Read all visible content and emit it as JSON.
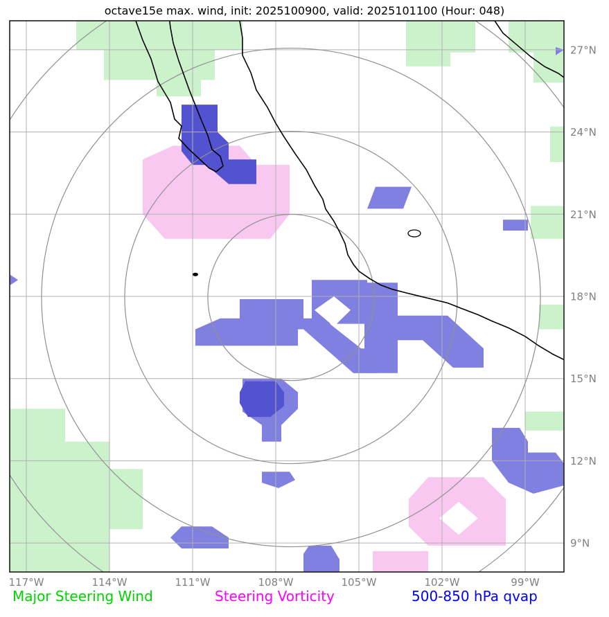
{
  "title": "octave15e max. wind, init: 2025100900, valid: 2025101100 (Hour: 048)",
  "legend": [
    {
      "id": "steering-wind",
      "label": "Major Steering Wind",
      "color": "#00d400"
    },
    {
      "id": "steering-vorticity",
      "label": "Steering Vorticity",
      "color": "#ff00ff"
    },
    {
      "id": "qvap",
      "label": "500-850 hPa qvap",
      "color": "#0000ff"
    }
  ],
  "chart_data": {
    "type": "map",
    "projection": "equirectangular",
    "lon_range": [
      -117.6,
      -97.6
    ],
    "lat_range": [
      7.94,
      28.06
    ],
    "lon_ticks": [
      {
        "value": -117,
        "label": "117°W"
      },
      {
        "value": -114,
        "label": "114°W"
      },
      {
        "value": -111,
        "label": "111°W"
      },
      {
        "value": -108,
        "label": "108°W"
      },
      {
        "value": -105,
        "label": "105°W"
      },
      {
        "value": -102,
        "label": "102°W"
      },
      {
        "value": -99,
        "label": "99°W"
      }
    ],
    "lat_ticks": [
      {
        "value": 27,
        "label": "27°N"
      },
      {
        "value": 24,
        "label": "24°N"
      },
      {
        "value": 21,
        "label": "21°N"
      },
      {
        "value": 18,
        "label": "18°N"
      },
      {
        "value": 15,
        "label": "15°N"
      },
      {
        "value": 12,
        "label": "12°N"
      },
      {
        "value": 9,
        "label": "9°N"
      }
    ],
    "range_rings": {
      "center_lon": -107.45,
      "center_lat": 17.96,
      "radii_deg": [
        3,
        6,
        9,
        12
      ]
    },
    "colors": {
      "wind_fill": "#ccf2cc",
      "vorticity_fill": "#f8c8f0",
      "qvap_fill": "#8080e0",
      "qvap_fill_dark": "#5353d1",
      "grid": "#b0b0b0",
      "ring": "#909090",
      "coast": "#000000",
      "tick_text": "#808080"
    },
    "fills": {
      "steering_wind": [
        [
          [
            -115.2,
            28.06
          ],
          [
            -109.2,
            28.06
          ],
          [
            -109.2,
            27.0
          ],
          [
            -110.2,
            27.0
          ],
          [
            -110.2,
            25.9
          ],
          [
            -110.7,
            25.9
          ],
          [
            -110.7,
            25.3
          ],
          [
            -112.3,
            25.3
          ],
          [
            -112.3,
            25.9
          ],
          [
            -114.2,
            25.9
          ],
          [
            -114.2,
            27.0
          ],
          [
            -115.2,
            27.0
          ]
        ],
        [
          [
            -103.3,
            28.06
          ],
          [
            -100.8,
            28.06
          ],
          [
            -100.8,
            26.9
          ],
          [
            -101.7,
            26.9
          ],
          [
            -101.7,
            26.4
          ],
          [
            -103.3,
            26.4
          ]
        ],
        [
          [
            -99.6,
            28.06
          ],
          [
            -97.6,
            28.06
          ],
          [
            -97.6,
            25.8
          ],
          [
            -98.7,
            25.8
          ],
          [
            -98.7,
            26.9
          ],
          [
            -99.6,
            26.9
          ]
        ],
        [
          [
            -98.1,
            24.2
          ],
          [
            -97.6,
            24.2
          ],
          [
            -97.6,
            22.9
          ],
          [
            -98.1,
            22.9
          ]
        ],
        [
          [
            -98.8,
            21.3
          ],
          [
            -97.6,
            21.3
          ],
          [
            -97.6,
            20.1
          ],
          [
            -98.8,
            20.1
          ]
        ],
        [
          [
            -98.5,
            17.7
          ],
          [
            -97.6,
            17.7
          ],
          [
            -97.6,
            16.8
          ],
          [
            -98.5,
            16.8
          ]
        ],
        [
          [
            -99.0,
            13.8
          ],
          [
            -97.6,
            13.8
          ],
          [
            -97.6,
            13.1
          ],
          [
            -99.0,
            13.1
          ]
        ],
        [
          [
            -117.6,
            13.9
          ],
          [
            -115.6,
            13.9
          ],
          [
            -115.6,
            12.7
          ],
          [
            -114.0,
            12.7
          ],
          [
            -114.0,
            11.7
          ],
          [
            -112.8,
            11.7
          ],
          [
            -112.8,
            9.5
          ],
          [
            -114.0,
            9.5
          ],
          [
            -114.0,
            7.94
          ],
          [
            -117.6,
            7.94
          ]
        ]
      ],
      "vorticity": [
        [
          [
            -111.7,
            23.5
          ],
          [
            -109.3,
            23.5
          ],
          [
            -108.7,
            22.8
          ],
          [
            -107.5,
            22.8
          ],
          [
            -107.5,
            21.0
          ],
          [
            -108.2,
            20.1
          ],
          [
            -112.0,
            20.1
          ],
          [
            -112.8,
            21.0
          ],
          [
            -112.8,
            23.0
          ]
        ],
        [
          [
            -102.5,
            11.4
          ],
          [
            -100.5,
            11.4
          ],
          [
            -99.7,
            10.6
          ],
          [
            -99.7,
            8.9
          ],
          [
            -102.5,
            8.9
          ],
          [
            -103.2,
            9.6
          ],
          [
            -103.2,
            10.6
          ]
        ],
        [
          [
            -104.5,
            8.7
          ],
          [
            -102.5,
            8.7
          ],
          [
            -102.5,
            7.94
          ],
          [
            -104.5,
            7.94
          ]
        ]
      ],
      "vorticity_holes": [
        [
          [
            -101.4,
            10.5
          ],
          [
            -100.7,
            9.9
          ],
          [
            -101.4,
            9.3
          ],
          [
            -102.1,
            9.9
          ]
        ]
      ],
      "qvap_light": [
        [
          [
            -104.4,
            22.0
          ],
          [
            -103.1,
            22.0
          ],
          [
            -103.4,
            21.2
          ],
          [
            -104.7,
            21.2
          ]
        ],
        [
          [
            -99.8,
            20.8
          ],
          [
            -98.9,
            20.8
          ],
          [
            -98.9,
            20.4
          ],
          [
            -99.8,
            20.4
          ]
        ],
        [
          [
            -117.6,
            18.8
          ],
          [
            -117.3,
            18.6
          ],
          [
            -117.6,
            18.4
          ]
        ],
        [
          [
            -110.9,
            16.2
          ],
          [
            -110.9,
            16.8
          ],
          [
            -110.0,
            17.2
          ],
          [
            -107.2,
            17.2
          ],
          [
            -107.2,
            16.2
          ]
        ],
        [
          [
            -109.3,
            17.9
          ],
          [
            -107.0,
            17.9
          ],
          [
            -107.0,
            16.8
          ],
          [
            -109.3,
            16.8
          ]
        ],
        [
          [
            -106.7,
            18.6
          ],
          [
            -104.7,
            18.6
          ],
          [
            -104.7,
            17.0
          ],
          [
            -106.7,
            17.0
          ]
        ],
        [
          [
            -104.8,
            18.5
          ],
          [
            -103.6,
            18.5
          ],
          [
            -103.6,
            15.2
          ],
          [
            -105.2,
            15.2
          ],
          [
            -105.2,
            16.1
          ],
          [
            -104.8,
            16.1
          ]
        ],
        [
          [
            -104.0,
            17.3
          ],
          [
            -101.8,
            17.3
          ],
          [
            -100.5,
            16.1
          ],
          [
            -100.5,
            15.4
          ],
          [
            -101.6,
            15.4
          ],
          [
            -102.7,
            16.4
          ],
          [
            -104.0,
            16.4
          ]
        ],
        [
          [
            -107.0,
            17.2
          ],
          [
            -106.3,
            17.2
          ],
          [
            -104.3,
            15.6
          ],
          [
            -104.3,
            15.2
          ],
          [
            -105.2,
            15.2
          ],
          [
            -107.0,
            16.8
          ]
        ],
        [
          [
            -109.2,
            15.0
          ],
          [
            -107.8,
            15.0
          ],
          [
            -107.2,
            14.5
          ],
          [
            -107.2,
            13.9
          ],
          [
            -107.8,
            13.3
          ],
          [
            -107.8,
            12.7
          ],
          [
            -108.5,
            12.7
          ],
          [
            -108.5,
            13.3
          ],
          [
            -109.2,
            13.8
          ]
        ],
        [
          [
            -108.5,
            11.6
          ],
          [
            -107.5,
            11.6
          ],
          [
            -107.3,
            11.3
          ],
          [
            -107.9,
            11.0
          ],
          [
            -108.5,
            11.2
          ]
        ],
        [
          [
            -111.4,
            9.6
          ],
          [
            -110.3,
            9.6
          ],
          [
            -109.7,
            9.2
          ],
          [
            -109.7,
            8.8
          ],
          [
            -111.4,
            8.8
          ],
          [
            -111.8,
            9.2
          ]
        ],
        [
          [
            -106.8,
            8.9
          ],
          [
            -106.0,
            8.9
          ],
          [
            -105.7,
            8.4
          ],
          [
            -105.7,
            7.94
          ],
          [
            -107.0,
            7.94
          ],
          [
            -107.0,
            8.6
          ]
        ],
        [
          [
            -100.2,
            13.2
          ],
          [
            -99.2,
            13.2
          ],
          [
            -98.9,
            12.7
          ],
          [
            -98.9,
            12.3
          ],
          [
            -97.9,
            12.3
          ],
          [
            -97.6,
            11.9
          ],
          [
            -97.6,
            11.1
          ],
          [
            -98.7,
            10.8
          ],
          [
            -99.6,
            11.2
          ],
          [
            -100.2,
            12.0
          ]
        ],
        [
          [
            -97.9,
            27.1
          ],
          [
            -97.6,
            27.0
          ],
          [
            -97.9,
            26.8
          ]
        ]
      ],
      "qvap_holes": [
        [
          [
            -105.9,
            18.0
          ],
          [
            -105.3,
            17.5
          ],
          [
            -105.9,
            16.9
          ],
          [
            -106.6,
            17.5
          ]
        ]
      ],
      "qvap_dark": [
        [
          [
            -111.4,
            25.0
          ],
          [
            -110.1,
            25.0
          ],
          [
            -110.1,
            24.0
          ],
          [
            -109.7,
            23.6
          ],
          [
            -109.7,
            23.0
          ],
          [
            -108.7,
            23.0
          ],
          [
            -108.7,
            22.1
          ],
          [
            -109.7,
            22.1
          ],
          [
            -110.5,
            22.8
          ],
          [
            -111.0,
            22.8
          ],
          [
            -111.4,
            23.3
          ]
        ],
        [
          [
            -109.1,
            14.9
          ],
          [
            -108.0,
            14.9
          ],
          [
            -107.7,
            14.5
          ],
          [
            -107.7,
            14.0
          ],
          [
            -108.2,
            13.6
          ],
          [
            -109.0,
            13.6
          ],
          [
            -109.3,
            14.1
          ],
          [
            -109.3,
            14.5
          ]
        ]
      ]
    },
    "coastlines": [
      {
        "name": "baja-california",
        "points": [
          [
            -113.05,
            28.06
          ],
          [
            -112.8,
            27.35
          ],
          [
            -112.5,
            26.67
          ],
          [
            -112.25,
            25.84
          ],
          [
            -111.8,
            25.08
          ],
          [
            -111.65,
            24.47
          ],
          [
            -111.4,
            24.22
          ],
          [
            -111.5,
            23.77
          ],
          [
            -111.15,
            23.39
          ],
          [
            -110.75,
            23.01
          ],
          [
            -110.4,
            22.68
          ],
          [
            -110.15,
            22.55
          ],
          [
            -109.9,
            22.76
          ],
          [
            -110.0,
            23.11
          ],
          [
            -110.3,
            23.36
          ],
          [
            -110.45,
            23.87
          ],
          [
            -110.7,
            24.47
          ],
          [
            -110.9,
            24.98
          ],
          [
            -111.1,
            25.48
          ],
          [
            -111.3,
            26.04
          ],
          [
            -111.5,
            26.6
          ],
          [
            -111.7,
            27.25
          ],
          [
            -111.8,
            27.81
          ],
          [
            -111.83,
            28.06
          ]
        ]
      },
      {
        "name": "mainland-pacific",
        "points": [
          [
            -109.3,
            28.06
          ],
          [
            -109.2,
            27.43
          ],
          [
            -109.2,
            26.8
          ],
          [
            -108.9,
            26.17
          ],
          [
            -108.7,
            25.53
          ],
          [
            -108.3,
            24.9
          ],
          [
            -108.0,
            24.32
          ],
          [
            -107.7,
            23.82
          ],
          [
            -107.3,
            23.21
          ],
          [
            -106.9,
            22.63
          ],
          [
            -106.6,
            22.05
          ],
          [
            -106.3,
            21.54
          ],
          [
            -106.2,
            21.19
          ],
          [
            -105.9,
            20.74
          ],
          [
            -105.7,
            20.36
          ],
          [
            -105.5,
            19.93
          ],
          [
            -105.4,
            19.52
          ],
          [
            -105.2,
            19.17
          ],
          [
            -105.0,
            18.92
          ],
          [
            -104.6,
            18.64
          ],
          [
            -104.2,
            18.41
          ],
          [
            -103.8,
            18.26
          ],
          [
            -103.3,
            18.13
          ],
          [
            -102.9,
            18.03
          ],
          [
            -102.4,
            17.91
          ],
          [
            -101.8,
            17.76
          ],
          [
            -101.3,
            17.56
          ],
          [
            -100.7,
            17.33
          ],
          [
            -100.2,
            17.1
          ],
          [
            -99.6,
            16.85
          ],
          [
            -99.0,
            16.54
          ],
          [
            -98.5,
            16.19
          ],
          [
            -98.0,
            15.89
          ],
          [
            -97.6,
            15.69
          ]
        ]
      },
      {
        "name": "gulf-coast",
        "points": [
          [
            -100.1,
            28.06
          ],
          [
            -99.8,
            27.61
          ],
          [
            -99.3,
            27.18
          ],
          [
            -98.8,
            26.75
          ],
          [
            -98.3,
            26.39
          ],
          [
            -97.8,
            26.14
          ],
          [
            -97.6,
            25.99
          ]
        ]
      }
    ],
    "islands": [
      {
        "name": "islas-marias",
        "lon": -110.9,
        "lat": 18.8
      }
    ],
    "lakes": [
      {
        "name": "chapala",
        "lon": -103.0,
        "lat": 20.3
      }
    ]
  }
}
